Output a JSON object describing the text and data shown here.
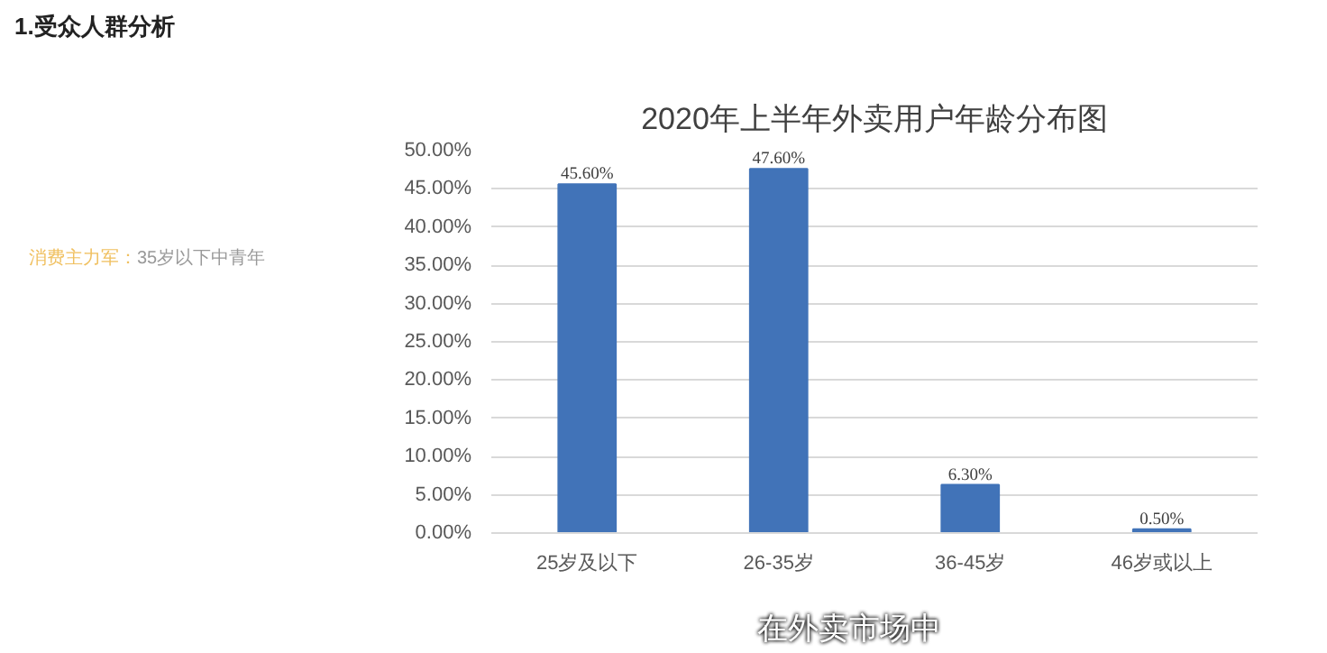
{
  "chart_data": {
    "type": "bar",
    "title": "2020年上半年外卖用户年龄分布图",
    "categories": [
      "25岁及以下",
      "26-35岁",
      "36-45岁",
      "46岁或以上"
    ],
    "values": [
      45.6,
      47.6,
      6.3,
      0.5
    ],
    "value_labels": [
      "45.60%",
      "47.60%",
      "6.30%",
      "0.50%"
    ],
    "color": "#4173b8",
    "ylim": [
      0,
      50
    ],
    "yticks": [
      {
        "value": 0,
        "label": "0.00%"
      },
      {
        "value": 5,
        "label": "5.00%"
      },
      {
        "value": 10,
        "label": "10.00%"
      },
      {
        "value": 15,
        "label": "15.00%"
      },
      {
        "value": 20,
        "label": "20.00%"
      },
      {
        "value": 25,
        "label": "25.00%"
      },
      {
        "value": 30,
        "label": "30.00%"
      },
      {
        "value": 35,
        "label": "35.00%"
      },
      {
        "value": 40,
        "label": "40.00%"
      },
      {
        "value": 45,
        "label": "45.00%"
      },
      {
        "value": 50,
        "label": "50.00%"
      }
    ],
    "grid": "y",
    "annotations": [
      "1.受众人群分析",
      "消费主力军：",
      "35岁以下中青年",
      "在外卖市场中"
    ]
  }
}
